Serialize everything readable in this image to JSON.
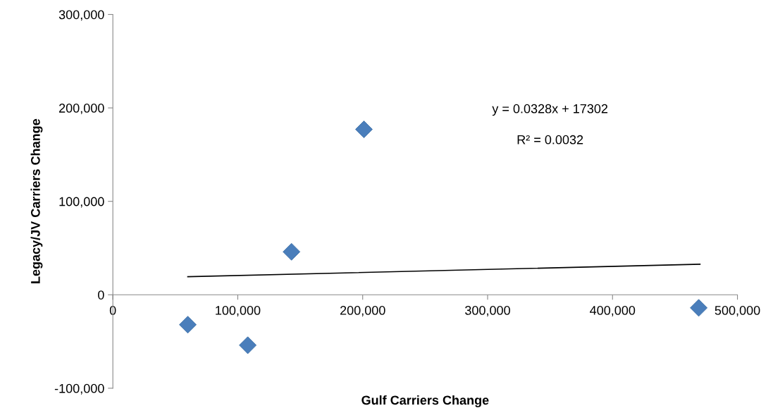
{
  "chart_data": {
    "type": "scatter",
    "xlabel": "Gulf Carriers Change",
    "ylabel": "Legacy/JV Carriers Change",
    "series": [
      {
        "color": "#4a7ebb",
        "marker": "diamond",
        "x": [
          60000,
          108000,
          143000,
          201000,
          469000
        ],
        "values": [
          -32000,
          -54000,
          46000,
          177000,
          -14000
        ]
      },
      {
        "type": "line",
        "color": "#000000",
        "marker": "none",
        "line_style": "solid",
        "x": [
          60000,
          470000
        ],
        "values": [
          19300,
          32700
        ]
      }
    ],
    "annotations": [
      "y = 0.0328x + 17302",
      "R² = 0.0032"
    ],
    "xlim": [
      0,
      500000
    ],
    "ylim": [
      -100000,
      300000
    ],
    "xticks": [
      {
        "value": 0,
        "label": "0"
      },
      {
        "value": 100000,
        "label": "100,000"
      },
      {
        "value": 200000,
        "label": "200,000"
      },
      {
        "value": 300000,
        "label": "300,000"
      },
      {
        "value": 400000,
        "label": "400,000"
      },
      {
        "value": 500000,
        "label": "500,000"
      }
    ],
    "yticks": [
      {
        "value": -100000,
        "label": "-100,000"
      },
      {
        "value": 0,
        "label": "0"
      },
      {
        "value": 100000,
        "label": "100,000"
      },
      {
        "value": 200000,
        "label": "200,000"
      },
      {
        "value": 300000,
        "label": "300,000"
      }
    ],
    "grid": false,
    "legend": false
  }
}
